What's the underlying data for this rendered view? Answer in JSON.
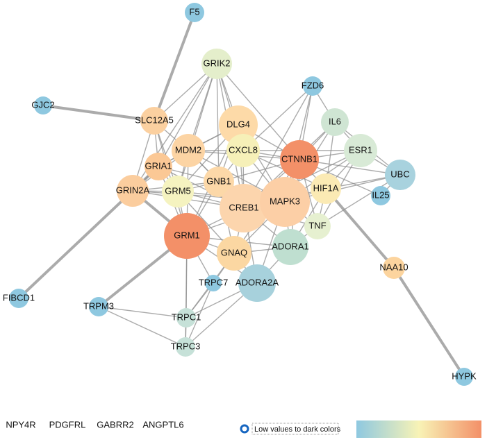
{
  "nodes": [
    {
      "label": "F5",
      "color": "#8ec8e0"
    },
    {
      "label": "GRIK2",
      "color": "#e4eecb"
    },
    {
      "label": "FZD6",
      "color": "#8ec8e0"
    },
    {
      "label": "GJC2",
      "color": "#8ec8e0"
    },
    {
      "label": "SLC12A5",
      "color": "#fbd0a0"
    },
    {
      "label": "DLG4",
      "color": "#fddaa8"
    },
    {
      "label": "IL6",
      "color": "#cfe5d3"
    },
    {
      "label": "MDM2",
      "color": "#fcd4a4"
    },
    {
      "label": "CXCL8",
      "color": "#f6f0b8"
    },
    {
      "label": "CTNNB1",
      "color": "#f39068"
    },
    {
      "label": "ESR1",
      "color": "#d8ead6"
    },
    {
      "label": "GRIA1",
      "color": "#fbc895"
    },
    {
      "label": "UBC",
      "color": "#a8d2de"
    },
    {
      "label": "GNB1",
      "color": "#fcd8a8"
    },
    {
      "label": "GRIN2A",
      "color": "#fbcd9e"
    },
    {
      "label": "GRM5",
      "color": "#f5f3c0"
    },
    {
      "label": "HIF1A",
      "color": "#fbeab4"
    },
    {
      "label": "IL25",
      "color": "#8ec8e0"
    },
    {
      "label": "CREB1",
      "color": "#fcd5ad"
    },
    {
      "label": "MAPK3",
      "color": "#fccfa6"
    },
    {
      "label": "TNF",
      "color": "#e6f0d0"
    },
    {
      "label": "GRM1",
      "color": "#f39068"
    },
    {
      "label": "ADORA1",
      "color": "#bfdfd0"
    },
    {
      "label": "GNAQ",
      "color": "#fbd7a2"
    },
    {
      "label": "NAA10",
      "color": "#fcd49e"
    },
    {
      "label": "TRPC7",
      "color": "#8ec8e0"
    },
    {
      "label": "ADORA2A",
      "color": "#a7d1dc"
    },
    {
      "label": "FIBCD1",
      "color": "#8ec8e0"
    },
    {
      "label": "TRPM3",
      "color": "#8ec8e0"
    },
    {
      "label": "TRPC1",
      "color": "#c6e1d8"
    },
    {
      "label": "TRPC3",
      "color": "#c6e1d8"
    },
    {
      "label": "HYPK",
      "color": "#8ec8e0"
    }
  ],
  "isolated": [
    "NPY4R",
    "PDGFRL",
    "GABRR2",
    "ANGPTL6"
  ],
  "legend": {
    "label": "Low values to dark colors"
  }
}
